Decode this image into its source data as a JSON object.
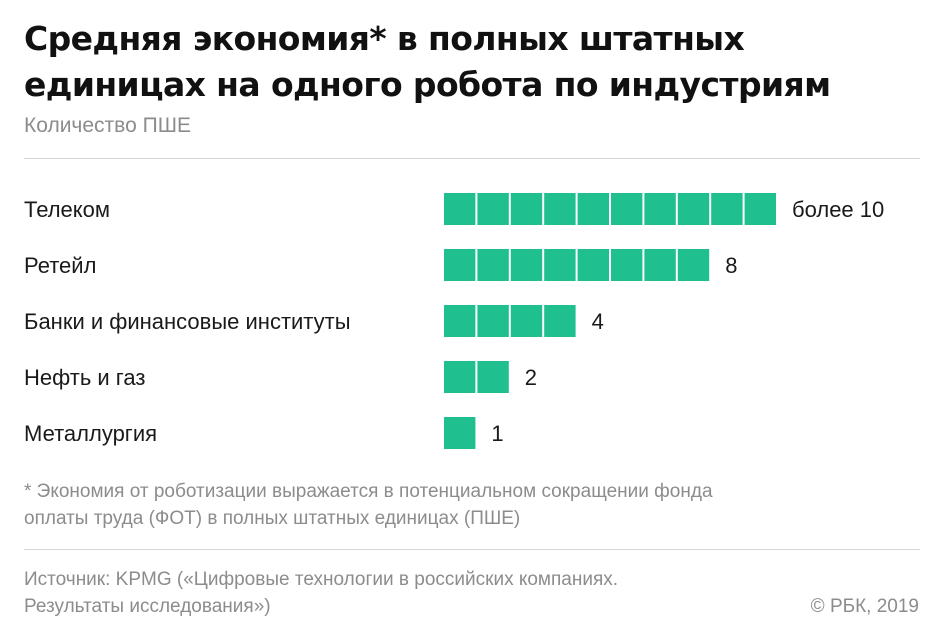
{
  "title_lines": [
    "Средняя экономия* в полных штатных",
    "единицах на одного робота по индустриям"
  ],
  "subtitle": "Количество ПШЕ",
  "footnote_lines": [
    "* Экономия от роботизации выражается в потенциальном сокращении фонда",
    "оплаты труда (ФОТ) в полных штатных единицах (ПШЕ)"
  ],
  "source_lines": [
    "Источник: KPMG («Цифровые технологии в российских компаниях.",
    "Результаты исследования»)"
  ],
  "copyright": "© РБК, 2019",
  "colors": {
    "bar": "#1fbf8f",
    "text": "#1a1a1a",
    "muted": "#8c8c8c"
  },
  "chart_data": {
    "type": "bar",
    "orientation": "horizontal",
    "title": "Средняя экономия* в полных штатных единицах на одного робота по индустриям",
    "subtitle": "Количество ПШЕ",
    "categories": [
      "Телеком",
      "Ретейл",
      "Банки и финансовые институты",
      "Нефть и газ",
      "Металлургия"
    ],
    "values": [
      10,
      8,
      4,
      2,
      1
    ],
    "value_labels": [
      "более 10",
      "8",
      "4",
      "2",
      "1"
    ],
    "unit_style": "segmented blocks, one block per unit",
    "xlim": [
      0,
      10
    ],
    "grid": false,
    "legend": "none"
  }
}
